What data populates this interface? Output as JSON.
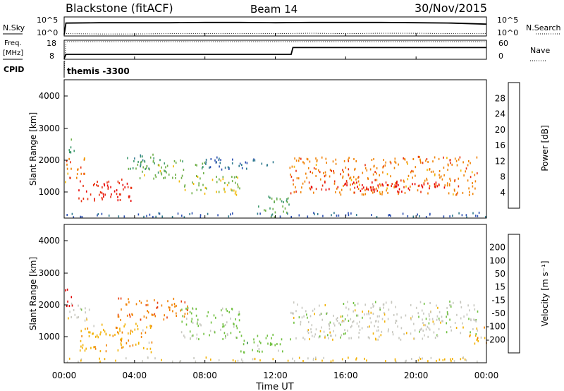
{
  "header": {
    "station": "Blackstone (fitACF)",
    "beam": "Beam 14",
    "date": "30/Nov/2015"
  },
  "top_panels": {
    "nsky_label": "N.Sky",
    "nsearch_label": "N.Search",
    "noise_ticks": [
      "10^5",
      "10^0"
    ],
    "noise_ticks_right": [
      "10^5",
      "10^0"
    ],
    "freq_label": "Freq.",
    "freq_unit": "[MHz]",
    "freq_ticks": [
      "18",
      "8"
    ],
    "nave_label": "Nave",
    "nave_ticks": [
      "60",
      "0"
    ],
    "cpid_label": "CPID",
    "cpid_value": "themis -3300"
  },
  "power_panel": {
    "ylabel": "Slant Range [km]",
    "yticks": [
      "4000",
      "3000",
      "2000",
      "1000"
    ],
    "colorbar_label": "Power [dB]",
    "colorbar_ticks": [
      "28",
      "24",
      "20",
      "16",
      "12",
      "8",
      "4"
    ],
    "colorbar_colors": [
      "#1a1aff",
      "#2b4fb0",
      "#2f7a8e",
      "#3f9a6e",
      "#6fb04a",
      "#f2b800",
      "#f08000",
      "#e83010",
      "#e80000"
    ]
  },
  "velocity_panel": {
    "ylabel": "Slant Range [km]",
    "yticks": [
      "4000",
      "3000",
      "2000",
      "1000"
    ],
    "colorbar_label": "Velocity [m s⁻¹]",
    "colorbar_ticks": [
      "200",
      "100",
      "50",
      "15",
      "-15",
      "-50",
      "-100",
      "-200"
    ],
    "colorbar_colors": [
      "#1a2fd0",
      "#2b70b8",
      "#208040",
      "#70c040",
      "#c8c8c0",
      "#f2b000",
      "#f08000",
      "#e84010",
      "#e00000"
    ]
  },
  "xaxis": {
    "ticks": [
      "00:00",
      "04:00",
      "08:00",
      "12:00",
      "16:00",
      "20:00",
      "00:00"
    ],
    "label": "Time UT"
  },
  "chart_data": [
    {
      "type": "line",
      "name": "noise",
      "x_hours": [
        0,
        0.1,
        2,
        4,
        6,
        8,
        10,
        12,
        14,
        16,
        18,
        20,
        22,
        24
      ],
      "series": [
        {
          "name": "N.Sky",
          "values": [
            0.2,
            3.6,
            3.7,
            3.7,
            3.7,
            3.8,
            3.8,
            3.7,
            3.8,
            3.8,
            3.8,
            3.7,
            3.6,
            3.3
          ]
        },
        {
          "name": "N.Search",
          "values": [
            0.3,
            0.5,
            0.4,
            0.4,
            0.5,
            0.5,
            0.5,
            0.5,
            0.6,
            0.5,
            0.6,
            0.6,
            0.5,
            0.5
          ]
        }
      ],
      "ylim": [
        0,
        5
      ]
    },
    {
      "type": "line",
      "name": "frequency",
      "x_hours": [
        0,
        0.1,
        12.9,
        13.0,
        24
      ],
      "series": [
        {
          "name": "Freq.",
          "values": [
            8,
            10.5,
            10.5,
            14.5,
            14.5
          ]
        },
        {
          "name": "Nave",
          "values": [
            0,
            18,
            18,
            18,
            18
          ]
        }
      ],
      "ylim": [
        8,
        18
      ]
    },
    {
      "type": "heatmap",
      "name": "power",
      "xlim_hours": [
        0,
        24
      ],
      "ylim_km": [
        200,
        4500
      ],
      "clim_db": [
        0,
        30
      ],
      "scatter_regions": [
        {
          "t0": 0.0,
          "t1": 1.2,
          "r0": 1300,
          "r1": 2100,
          "level": 22
        },
        {
          "t0": 0.0,
          "t1": 0.6,
          "r0": 2200,
          "r1": 2700,
          "level": 12
        },
        {
          "t0": 0.8,
          "t1": 4.0,
          "r0": 700,
          "r1": 1400,
          "level": 26
        },
        {
          "t0": 2.0,
          "t1": 3.2,
          "r0": 750,
          "r1": 1000,
          "level": 27
        },
        {
          "t0": 3.5,
          "t1": 5.5,
          "r0": 1700,
          "r1": 2200,
          "level": 12
        },
        {
          "t0": 4.0,
          "t1": 8.0,
          "r0": 1400,
          "r1": 2000,
          "level": 15
        },
        {
          "t0": 6.5,
          "t1": 10.0,
          "r0": 900,
          "r1": 1500,
          "level": 16
        },
        {
          "t0": 8.0,
          "t1": 12.0,
          "r0": 1700,
          "r1": 2100,
          "level": 7
        },
        {
          "t0": 11.0,
          "t1": 12.8,
          "r0": 200,
          "r1": 900,
          "level": 14
        },
        {
          "t0": 12.8,
          "t1": 23.5,
          "r0": 900,
          "r1": 2100,
          "level": 22
        },
        {
          "t0": 14.0,
          "t1": 23.0,
          "r0": 1000,
          "r1": 1300,
          "level": 28
        },
        {
          "t0": 0.0,
          "t1": 24.0,
          "r0": 200,
          "r1": 350,
          "level": 6
        }
      ]
    },
    {
      "type": "heatmap",
      "name": "velocity",
      "xlim_hours": [
        0,
        24
      ],
      "ylim_km": [
        200,
        4500
      ],
      "clim_ms": [
        -200,
        200
      ],
      "scatter_regions": [
        {
          "t0": 0.0,
          "t1": 0.5,
          "r0": 1900,
          "r1": 2500,
          "level": -200
        },
        {
          "t0": 0.0,
          "t1": 1.4,
          "r0": 1500,
          "r1": 2050,
          "level": 0
        },
        {
          "t0": 0.8,
          "t1": 5.0,
          "r0": 500,
          "r1": 1400,
          "level": -50
        },
        {
          "t0": 3.0,
          "t1": 7.0,
          "r0": 1500,
          "r1": 2200,
          "level": -100
        },
        {
          "t0": 6.5,
          "t1": 10.0,
          "r0": 900,
          "r1": 1900,
          "level": 30
        },
        {
          "t0": 10.0,
          "t1": 12.5,
          "r0": 500,
          "r1": 1100,
          "level": 40
        },
        {
          "t0": 12.8,
          "t1": 23.5,
          "r0": 900,
          "r1": 2100,
          "level": 0
        },
        {
          "t0": 23.0,
          "t1": 24.0,
          "r0": 700,
          "r1": 1300,
          "level": -50
        },
        {
          "t0": 0.0,
          "t1": 24.0,
          "r0": 200,
          "r1": 350,
          "level": -30
        }
      ]
    }
  ]
}
